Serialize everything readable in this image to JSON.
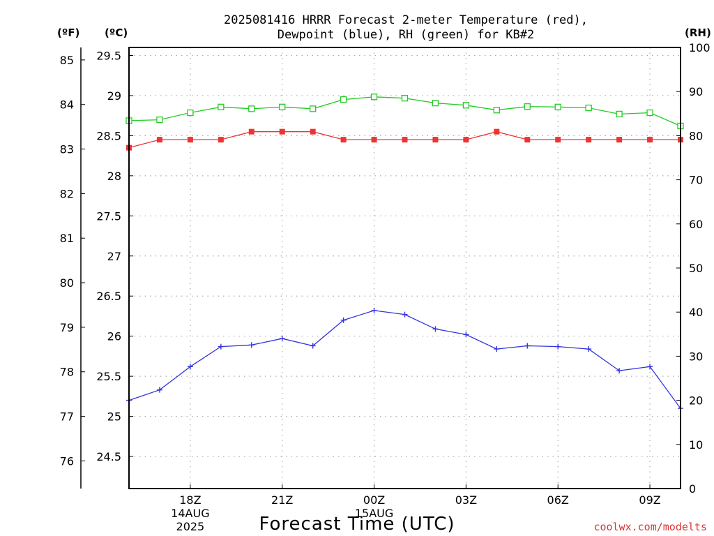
{
  "chart_data": {
    "type": "line",
    "title_lines": [
      "2025081416 HRRR Forecast 2-meter Temperature (red),",
      "Dewpoint (blue), RH (green) for KB#2"
    ],
    "xlabel": "Forecast Time (UTC)",
    "credit": "coolwx.com/modelts",
    "units": {
      "f": "(ºF)",
      "c": "(ºC)",
      "rh": "(RH)"
    },
    "x_tick_labels": [
      {
        "hour": 18,
        "lines": [
          "18Z",
          "14AUG",
          "2025"
        ]
      },
      {
        "hour": 21,
        "lines": [
          "21Z"
        ]
      },
      {
        "hour": 24,
        "lines": [
          "00Z",
          "15AUG"
        ]
      },
      {
        "hour": 27,
        "lines": [
          "03Z"
        ]
      },
      {
        "hour": 30,
        "lines": [
          "06Z"
        ]
      },
      {
        "hour": 33,
        "lines": [
          "09Z"
        ]
      }
    ],
    "xlim": [
      16,
      34
    ],
    "ylim_c": [
      24.1,
      29.6
    ],
    "ylim_rh": [
      0,
      100
    ],
    "y_ticks_c": [
      "24.5",
      "25",
      "25.5",
      "26",
      "26.5",
      "27",
      "27.5",
      "28",
      "28.5",
      "29",
      "29.5"
    ],
    "y_ticks_f": [
      "76",
      "77",
      "78",
      "79",
      "80",
      "81",
      "82",
      "83",
      "84",
      "85"
    ],
    "y_ticks_rh": [
      "0",
      "10",
      "20",
      "30",
      "40",
      "50",
      "60",
      "70",
      "80",
      "90",
      "100"
    ],
    "grid": true,
    "series": [
      {
        "name": "Temperature",
        "axis": "c",
        "color": "#ee3333",
        "marker": "filled-square",
        "x": [
          16,
          17,
          18,
          19,
          20,
          21,
          22,
          23,
          24,
          25,
          26,
          27,
          28,
          29,
          30,
          31,
          32,
          33,
          34
        ],
        "values": [
          28.35,
          28.45,
          28.45,
          28.45,
          28.55,
          28.55,
          28.55,
          28.45,
          28.45,
          28.45,
          28.45,
          28.45,
          28.55,
          28.45,
          28.45,
          28.45,
          28.45,
          28.45,
          28.45
        ]
      },
      {
        "name": "Dewpoint",
        "axis": "c",
        "color": "#3333dd",
        "marker": "plus",
        "x": [
          16,
          17,
          18,
          19,
          20,
          21,
          22,
          23,
          24,
          25,
          26,
          27,
          28,
          29,
          30,
          31,
          32,
          33,
          34
        ],
        "values": [
          25.2,
          25.33,
          25.62,
          25.87,
          25.89,
          25.97,
          25.88,
          26.2,
          26.32,
          26.27,
          26.09,
          26.02,
          25.84,
          25.88,
          25.87,
          25.84,
          25.57,
          25.62,
          25.1
        ]
      },
      {
        "name": "RH",
        "axis": "rh",
        "color": "#22cc22",
        "marker": "open-square",
        "x": [
          16,
          17,
          18,
          19,
          20,
          21,
          22,
          23,
          24,
          25,
          26,
          27,
          28,
          29,
          30,
          31,
          32,
          33,
          34
        ],
        "values": [
          83.4,
          83.6,
          85.2,
          86.5,
          86.1,
          86.5,
          86.1,
          88.2,
          88.8,
          88.5,
          87.4,
          86.9,
          85.8,
          86.6,
          86.5,
          86.3,
          84.9,
          85.2,
          82.2
        ]
      }
    ]
  }
}
